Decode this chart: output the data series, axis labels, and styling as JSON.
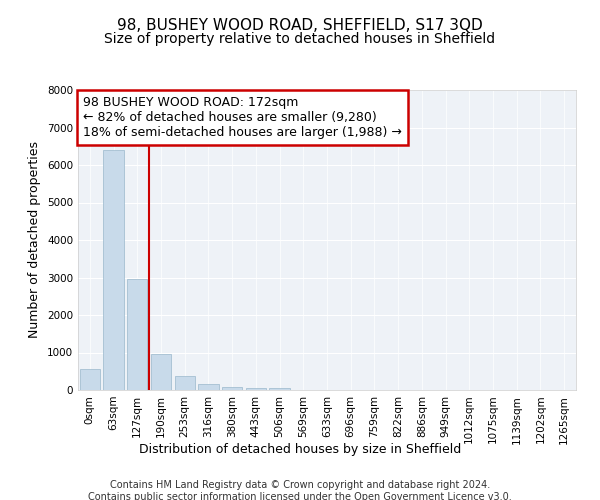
{
  "title": "98, BUSHEY WOOD ROAD, SHEFFIELD, S17 3QD",
  "subtitle": "Size of property relative to detached houses in Sheffield",
  "xlabel": "Distribution of detached houses by size in Sheffield",
  "ylabel": "Number of detached properties",
  "bar_labels": [
    "0sqm",
    "63sqm",
    "127sqm",
    "190sqm",
    "253sqm",
    "316sqm",
    "380sqm",
    "443sqm",
    "506sqm",
    "569sqm",
    "633sqm",
    "696sqm",
    "759sqm",
    "822sqm",
    "886sqm",
    "949sqm",
    "1012sqm",
    "1075sqm",
    "1139sqm",
    "1202sqm",
    "1265sqm"
  ],
  "bar_values": [
    550,
    6400,
    2950,
    970,
    380,
    165,
    90,
    65,
    45,
    0,
    0,
    0,
    0,
    0,
    0,
    0,
    0,
    0,
    0,
    0,
    0
  ],
  "bar_color": "#c8daea",
  "bar_edge_color": "#9ab8cc",
  "annotation_line1": "98 BUSHEY WOOD ROAD: 172sqm",
  "annotation_line2": "← 82% of detached houses are smaller (9,280)",
  "annotation_line3": "18% of semi-detached houses are larger (1,988) →",
  "annotation_box_color": "#ffffff",
  "annotation_box_edge_color": "#cc0000",
  "vline_color": "#cc0000",
  "vline_x": 2.5,
  "ylim": [
    0,
    8000
  ],
  "yticks": [
    0,
    1000,
    2000,
    3000,
    4000,
    5000,
    6000,
    7000,
    8000
  ],
  "bg_color": "#eef2f7",
  "grid_color": "#ffffff",
  "footer_text": "Contains HM Land Registry data © Crown copyright and database right 2024.\nContains public sector information licensed under the Open Government Licence v3.0.",
  "title_fontsize": 11,
  "subtitle_fontsize": 10,
  "xlabel_fontsize": 9,
  "ylabel_fontsize": 9,
  "tick_fontsize": 7.5,
  "annotation_fontsize": 9,
  "footer_fontsize": 7
}
